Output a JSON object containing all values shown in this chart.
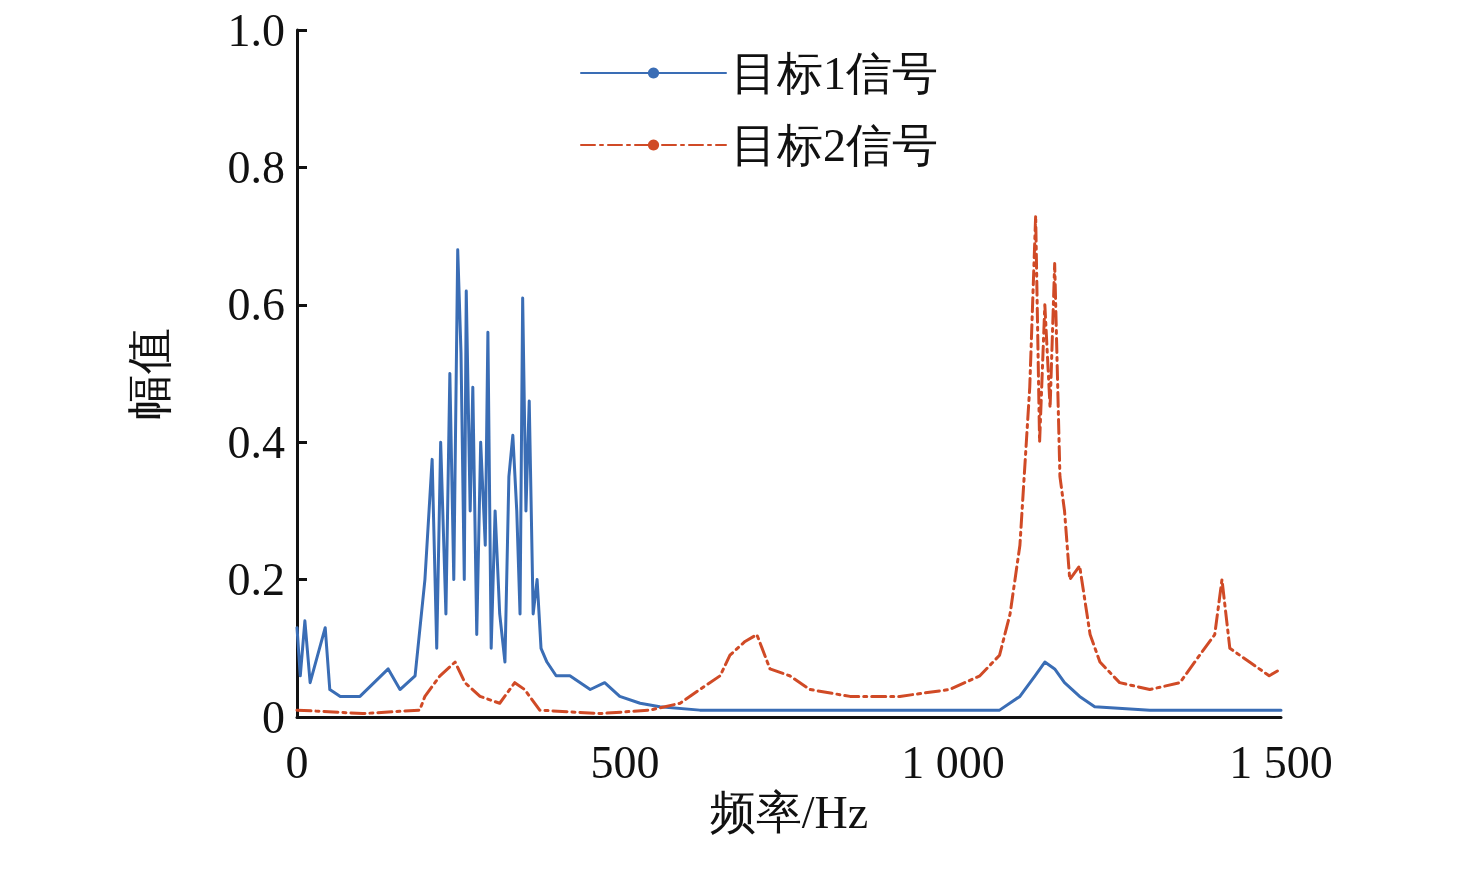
{
  "chart_data": {
    "type": "line",
    "xlabel": "频率/Hz",
    "ylabel": "幅值",
    "xlim": [
      0,
      1500
    ],
    "xticks": [
      0,
      500,
      {
        "value": 1000,
        "label": "1 000"
      },
      {
        "value": 1500,
        "label": "1 500"
      }
    ],
    "ylim": [
      0,
      1
    ],
    "yticks": [
      0,
      0.2,
      0.4,
      0.6,
      0.8,
      {
        "value": 1,
        "label": "1.0"
      }
    ],
    "grid": false,
    "legend": "top",
    "marker": "none",
    "series": [
      {
        "name": "目标1信号",
        "color": "#3a6db5",
        "line_style": "solid",
        "x": [
          0,
          5,
          12,
          20,
          43,
          50,
          66,
          96,
          139,
          157,
          180,
          195,
          206,
          213,
          219,
          227,
          233,
          239,
          245,
          250,
          255,
          258,
          264,
          268,
          274,
          280,
          287,
          291,
          296,
          302,
          309,
          317,
          323,
          329,
          335,
          340,
          344,
          349,
          354,
          360,
          366,
          372,
          381,
          395,
          416,
          447,
          469,
          492,
          523,
          553,
          614,
          767,
          919,
          1071,
          1102,
          1125,
          1140,
          1155,
          1170,
          1193,
          1216,
          1300,
          1376,
          1500
        ],
        "values": [
          0.13,
          0.06,
          0.14,
          0.05,
          0.13,
          0.04,
          0.03,
          0.03,
          0.07,
          0.04,
          0.06,
          0.2,
          0.375,
          0.1,
          0.4,
          0.15,
          0.5,
          0.2,
          0.68,
          0.53,
          0.2,
          0.62,
          0.3,
          0.48,
          0.12,
          0.4,
          0.25,
          0.56,
          0.1,
          0.3,
          0.15,
          0.08,
          0.35,
          0.41,
          0.3,
          0.15,
          0.61,
          0.3,
          0.46,
          0.15,
          0.2,
          0.1,
          0.08,
          0.06,
          0.06,
          0.04,
          0.05,
          0.03,
          0.02,
          0.015,
          0.01,
          0.01,
          0.01,
          0.01,
          0.03,
          0.06,
          0.08,
          0.07,
          0.05,
          0.03,
          0.015,
          0.01,
          0.01,
          0.01
        ]
      },
      {
        "name": "目标2信号",
        "color": "#d04a26",
        "line_style": "dashed",
        "x": [
          0,
          100,
          187,
          195,
          218,
          241,
          256,
          279,
          309,
          332,
          347,
          370,
          462,
          538,
          584,
          614,
          645,
          660,
          683,
          701,
          721,
          751,
          782,
          843,
          919,
          995,
          1041,
          1071,
          1087,
          1102,
          1117,
          1126,
          1132,
          1140,
          1148,
          1155,
          1163,
          1170,
          1178,
          1193,
          1209,
          1224,
          1254,
          1300,
          1346,
          1376,
          1399,
          1410,
          1422,
          1452,
          1482,
          1500
        ],
        "values": [
          0.01,
          0.005,
          0.01,
          0.03,
          0.06,
          0.08,
          0.05,
          0.03,
          0.02,
          0.05,
          0.04,
          0.01,
          0.005,
          0.01,
          0.02,
          0.04,
          0.06,
          0.09,
          0.11,
          0.12,
          0.07,
          0.06,
          0.04,
          0.03,
          0.03,
          0.04,
          0.06,
          0.09,
          0.15,
          0.25,
          0.48,
          0.73,
          0.4,
          0.6,
          0.45,
          0.66,
          0.35,
          0.3,
          0.2,
          0.22,
          0.12,
          0.08,
          0.05,
          0.04,
          0.05,
          0.09,
          0.12,
          0.2,
          0.1,
          0.08,
          0.06,
          0.07
        ]
      }
    ]
  }
}
